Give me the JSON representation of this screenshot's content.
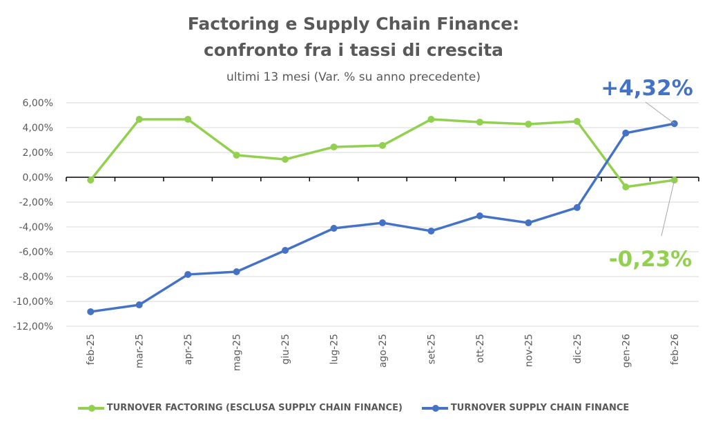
{
  "chart_data": {
    "type": "line",
    "title": [
      "Factoring e Supply Chain Finance:",
      "confronto fra i tassi di crescita"
    ],
    "subtitle": "ultimi 13 mesi (Var. % su anno precedente)",
    "xlabel": "",
    "ylabel": "",
    "ylim": [
      -12,
      6
    ],
    "yticks": [
      6,
      4,
      2,
      0,
      -2,
      -4,
      -6,
      -8,
      -10,
      -12
    ],
    "ytick_labels": [
      "6,00%",
      "4,00%",
      "2,00%",
      "0,00%",
      "-2,00%",
      "-4,00%",
      "-6,00%",
      "-8,00%",
      "-10,00%",
      "-12,00%"
    ],
    "grid": true,
    "legend_position": "bottom",
    "categories": [
      "feb-25",
      "mar-25",
      "apr-25",
      "mag-25",
      "giu-25",
      "lug-25",
      "ago-25",
      "set-25",
      "ott-25",
      "nov-25",
      "dic-25",
      "gen-26",
      "feb-26"
    ],
    "series": [
      {
        "name": "TURNOVER FACTORING (ESCLUSA SUPPLY CHAIN FINANCE)",
        "color": "#92d050",
        "values": [
          -0.23,
          4.67,
          4.67,
          1.78,
          1.44,
          2.44,
          2.56,
          4.67,
          4.44,
          4.28,
          4.5,
          -0.78,
          -0.23
        ]
      },
      {
        "name": "TURNOVER SUPPLY CHAIN FINANCE",
        "color": "#4472c4",
        "values": [
          -10.83,
          -10.28,
          -7.83,
          -7.61,
          -5.89,
          -4.11,
          -3.67,
          -4.33,
          -3.11,
          -3.67,
          -2.44,
          3.56,
          4.32
        ]
      }
    ],
    "annotations": [
      {
        "text": "+4,32%",
        "series": 1,
        "point": 12,
        "color": "#4472c4"
      },
      {
        "text": "-0,23%",
        "series": 0,
        "point": 12,
        "color": "#92d050"
      }
    ]
  }
}
